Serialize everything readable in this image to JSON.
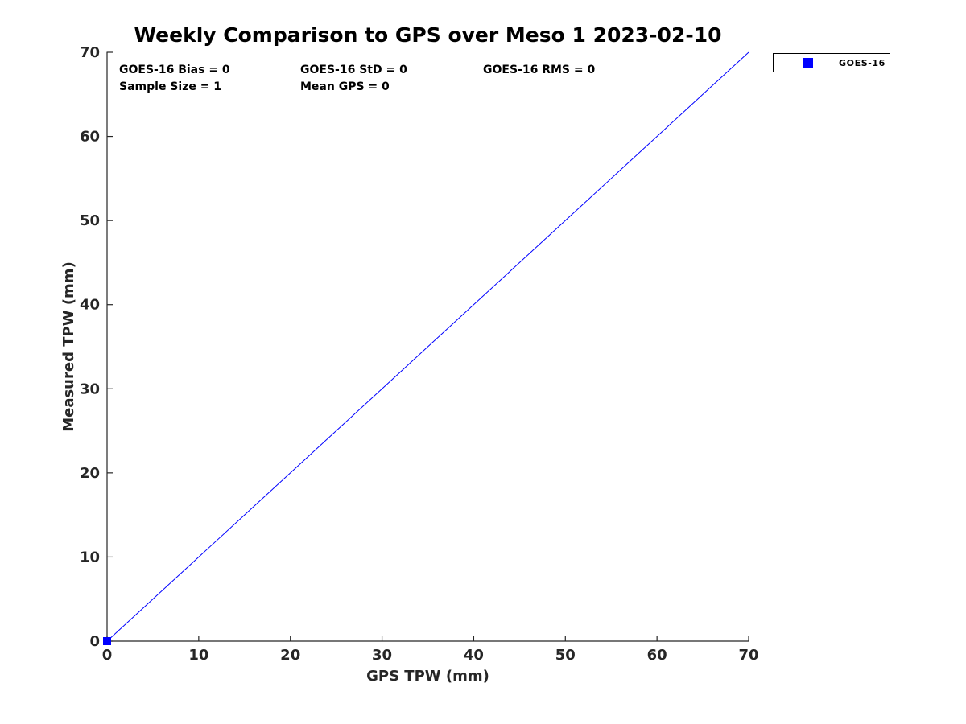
{
  "chart_data": {
    "type": "scatter",
    "title": "Weekly Comparison to GPS over Meso 1 2023-02-10",
    "xlabel": "GPS TPW (mm)",
    "ylabel": "Measured TPW (mm)",
    "xlim": [
      0,
      70
    ],
    "ylim": [
      0,
      70
    ],
    "xticks": [
      0,
      10,
      20,
      30,
      40,
      50,
      60,
      70
    ],
    "yticks": [
      0,
      10,
      20,
      30,
      40,
      50,
      60,
      70
    ],
    "grid": false,
    "axis_color": "#262626",
    "series": [
      {
        "name": "one-to-one-line",
        "type": "line",
        "color": "#0000ff",
        "points": [
          [
            0,
            0
          ],
          [
            70,
            70
          ]
        ]
      },
      {
        "name": "GOES-16",
        "type": "scatter",
        "marker": "square",
        "color": "#0000ff",
        "points": [
          [
            0,
            0
          ]
        ]
      }
    ],
    "legend": {
      "position": "outside-top-right",
      "entries": [
        {
          "label": "GOES-16",
          "marker": "square",
          "color": "#0000ff"
        }
      ]
    },
    "stats": [
      {
        "text": "GOES-16 Bias = 0"
      },
      {
        "text": "GOES-16 StD = 0"
      },
      {
        "text": "GOES-16 RMS = 0"
      },
      {
        "text": "Sample Size = 1"
      },
      {
        "text": "Mean GPS = 0"
      }
    ]
  }
}
